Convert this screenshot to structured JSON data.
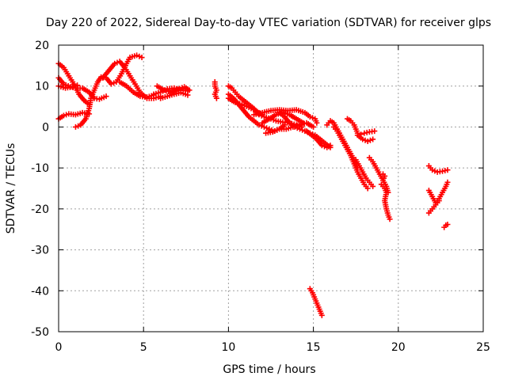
{
  "chart_data": {
    "type": "scatter",
    "title": "Day 220 of 2022, Sidereal Day-to-day VTEC variation (SDTVAR) for receiver glps",
    "xlabel": "GPS time / hours",
    "ylabel": "SDTVAR / TECUs",
    "xlim": [
      0,
      25
    ],
    "ylim": [
      -50,
      20
    ],
    "xticks": [
      0,
      5,
      10,
      15,
      20,
      25
    ],
    "yticks": [
      -50,
      -40,
      -30,
      -20,
      -10,
      0,
      10,
      20
    ],
    "grid": true,
    "marker": "+",
    "color": "#ff0000",
    "segments": [
      {
        "name": "arc-1",
        "points": [
          [
            0.0,
            15.5
          ],
          [
            0.3,
            14.5
          ],
          [
            0.6,
            12.5
          ],
          [
            0.9,
            10.5
          ],
          [
            1.2,
            8.0
          ],
          [
            1.5,
            6.5
          ],
          [
            1.8,
            5.5
          ]
        ]
      },
      {
        "name": "arc-2",
        "points": [
          [
            0.0,
            12.0
          ],
          [
            0.3,
            10.5
          ],
          [
            0.7,
            9.8
          ],
          [
            1.0,
            9.5
          ],
          [
            1.4,
            9.5
          ],
          [
            1.8,
            8.5
          ],
          [
            2.1,
            7.0
          ],
          [
            2.4,
            6.8
          ],
          [
            2.8,
            7.5
          ]
        ]
      },
      {
        "name": "arc-3",
        "points": [
          [
            0.0,
            10.0
          ],
          [
            0.4,
            9.5
          ],
          [
            0.8,
            9.8
          ],
          [
            1.1,
            10.2
          ]
        ]
      },
      {
        "name": "arc-4",
        "points": [
          [
            0.0,
            2.0
          ],
          [
            0.3,
            2.8
          ],
          [
            0.6,
            3.2
          ],
          [
            1.0,
            3.0
          ],
          [
            1.4,
            3.5
          ],
          [
            1.8,
            3.2
          ]
        ]
      },
      {
        "name": "arc-5",
        "points": [
          [
            1.0,
            0.0
          ],
          [
            1.3,
            0.5
          ],
          [
            1.6,
            2.0
          ],
          [
            1.8,
            4.5
          ],
          [
            1.9,
            7.0
          ],
          [
            2.1,
            9.0
          ],
          [
            2.3,
            11.0
          ],
          [
            2.5,
            12.2
          ],
          [
            2.8,
            12.0
          ],
          [
            3.1,
            10.5
          ],
          [
            3.4,
            11.0
          ],
          [
            3.7,
            13.0
          ],
          [
            4.0,
            15.5
          ],
          [
            4.2,
            17.0
          ],
          [
            4.6,
            17.5
          ],
          [
            4.9,
            17.0
          ]
        ]
      },
      {
        "name": "arc-6",
        "points": [
          [
            2.6,
            12.0
          ],
          [
            3.0,
            14.0
          ],
          [
            3.3,
            15.5
          ],
          [
            3.6,
            16.0
          ],
          [
            3.9,
            14.5
          ],
          [
            4.2,
            12.5
          ],
          [
            4.5,
            10.5
          ],
          [
            4.8,
            8.5
          ],
          [
            5.2,
            7.0
          ],
          [
            5.6,
            7.0
          ],
          [
            6.0,
            7.5
          ]
        ]
      },
      {
        "name": "arc-7",
        "points": [
          [
            3.6,
            11.0
          ],
          [
            4.0,
            10.0
          ],
          [
            4.4,
            8.5
          ],
          [
            4.8,
            7.5
          ],
          [
            5.2,
            7.3
          ],
          [
            5.6,
            7.8
          ]
        ]
      },
      {
        "name": "arc-8",
        "points": [
          [
            5.6,
            8.0
          ],
          [
            6.0,
            8.5
          ],
          [
            6.4,
            9.3
          ],
          [
            6.8,
            9.5
          ],
          [
            7.2,
            9.0
          ],
          [
            7.6,
            8.8
          ]
        ]
      },
      {
        "name": "arc-9",
        "points": [
          [
            5.8,
            10.0
          ],
          [
            6.2,
            9.0
          ],
          [
            6.6,
            8.5
          ],
          [
            7.0,
            9.2
          ],
          [
            7.4,
            9.8
          ],
          [
            7.7,
            9.0
          ]
        ]
      },
      {
        "name": "arc-10",
        "points": [
          [
            6.0,
            7.0
          ],
          [
            6.4,
            7.5
          ],
          [
            6.8,
            8.0
          ],
          [
            7.2,
            8.4
          ],
          [
            7.6,
            7.8
          ]
        ]
      },
      {
        "name": "arc-11",
        "points": [
          [
            9.2,
            11.0
          ],
          [
            9.2,
            10.0
          ],
          [
            9.3,
            9.0
          ],
          [
            9.2,
            8.0
          ],
          [
            9.3,
            7.0
          ]
        ]
      },
      {
        "name": "arc-12",
        "points": [
          [
            10.0,
            10.0
          ],
          [
            10.2,
            9.5
          ],
          [
            10.4,
            8.5
          ],
          [
            10.6,
            7.5
          ],
          [
            10.9,
            6.5
          ],
          [
            11.2,
            5.5
          ],
          [
            11.5,
            4.5
          ],
          [
            11.8,
            3.0
          ],
          [
            12.1,
            2.5
          ],
          [
            12.5,
            2.0
          ],
          [
            12.8,
            1.5
          ],
          [
            13.2,
            1.2
          ],
          [
            13.6,
            1.0
          ],
          [
            14.0,
            0.5
          ],
          [
            14.3,
            0.0
          ]
        ]
      },
      {
        "name": "arc-13",
        "points": [
          [
            10.0,
            8.0
          ],
          [
            10.3,
            7.0
          ],
          [
            10.6,
            5.5
          ],
          [
            10.9,
            4.0
          ],
          [
            11.2,
            2.5
          ],
          [
            11.5,
            1.5
          ],
          [
            11.8,
            0.5
          ],
          [
            12.1,
            0.0
          ],
          [
            12.4,
            -0.5
          ],
          [
            12.7,
            -1.0
          ],
          [
            13.0,
            -0.5
          ],
          [
            13.3,
            0.5
          ]
        ]
      },
      {
        "name": "arc-14",
        "points": [
          [
            10.0,
            7.0
          ],
          [
            10.4,
            6.0
          ],
          [
            10.8,
            5.5
          ],
          [
            11.2,
            4.8
          ],
          [
            11.6,
            4.0
          ],
          [
            12.0,
            3.0
          ]
        ]
      },
      {
        "name": "arc-15",
        "points": [
          [
            11.5,
            3.0
          ],
          [
            12.0,
            3.5
          ],
          [
            12.5,
            4.0
          ],
          [
            13.0,
            4.2
          ],
          [
            13.5,
            4.0
          ],
          [
            14.0,
            4.2
          ],
          [
            14.5,
            3.5
          ],
          [
            14.8,
            2.5
          ],
          [
            15.1,
            2.0
          ],
          [
            15.2,
            1.0
          ]
        ]
      },
      {
        "name": "arc-16",
        "points": [
          [
            12.0,
            1.0
          ],
          [
            12.4,
            2.0
          ],
          [
            12.8,
            3.0
          ],
          [
            13.2,
            3.5
          ],
          [
            13.6,
            3.0
          ],
          [
            14.0,
            2.0
          ],
          [
            14.4,
            1.0
          ]
        ]
      },
      {
        "name": "arc-17",
        "points": [
          [
            12.2,
            -1.5
          ],
          [
            12.6,
            -1.2
          ],
          [
            13.0,
            -0.5
          ],
          [
            13.4,
            -0.5
          ],
          [
            13.8,
            0.0
          ],
          [
            14.2,
            0.5
          ],
          [
            14.6,
            1.0
          ],
          [
            15.0,
            0.0
          ]
        ]
      },
      {
        "name": "arc-18",
        "points": [
          [
            13.0,
            3.5
          ],
          [
            13.3,
            2.5
          ],
          [
            13.6,
            1.0
          ],
          [
            13.9,
            0.0
          ],
          [
            14.2,
            -0.5
          ],
          [
            14.5,
            -1.0
          ],
          [
            14.8,
            -1.5
          ],
          [
            15.1,
            -2.0
          ],
          [
            15.4,
            -3.0
          ],
          [
            15.7,
            -4.0
          ],
          [
            16.0,
            -5.0
          ]
        ]
      },
      {
        "name": "arc-19",
        "points": [
          [
            14.6,
            -1.0
          ],
          [
            14.9,
            -2.0
          ],
          [
            15.2,
            -3.0
          ],
          [
            15.5,
            -4.5
          ],
          [
            15.8,
            -5.0
          ],
          [
            16.0,
            -4.5
          ]
        ]
      },
      {
        "name": "arc-20",
        "points": [
          [
            14.8,
            -39.5
          ],
          [
            14.95,
            -40.5
          ],
          [
            15.1,
            -42.0
          ],
          [
            15.25,
            -43.5
          ],
          [
            15.4,
            -45.0
          ],
          [
            15.5,
            -46.0
          ]
        ]
      },
      {
        "name": "arc-21",
        "points": [
          [
            15.8,
            0.5
          ],
          [
            16.0,
            1.5
          ],
          [
            16.2,
            1.0
          ],
          [
            16.4,
            -0.5
          ],
          [
            16.6,
            -2.0
          ],
          [
            16.8,
            -3.5
          ],
          [
            17.0,
            -5.0
          ],
          [
            17.2,
            -6.5
          ],
          [
            17.4,
            -8.0
          ],
          [
            17.6,
            -10.0
          ]
        ]
      },
      {
        "name": "arc-22",
        "points": [
          [
            16.2,
            0.0
          ],
          [
            16.4,
            -1.0
          ],
          [
            16.6,
            -2.5
          ],
          [
            16.8,
            -4.0
          ],
          [
            17.0,
            -5.5
          ],
          [
            17.2,
            -7.0
          ],
          [
            17.4,
            -9.0
          ],
          [
            17.6,
            -11.0
          ],
          [
            17.8,
            -12.5
          ],
          [
            18.0,
            -14.0
          ],
          [
            18.2,
            -15.0
          ]
        ]
      },
      {
        "name": "arc-23",
        "points": [
          [
            17.0,
            2.0
          ],
          [
            17.2,
            1.5
          ],
          [
            17.4,
            0.5
          ],
          [
            17.5,
            -0.5
          ],
          [
            17.6,
            -1.5
          ],
          [
            17.8,
            -1.8
          ],
          [
            18.0,
            -1.5
          ],
          [
            18.3,
            -1.2
          ],
          [
            18.6,
            -1.0
          ]
        ]
      },
      {
        "name": "arc-24",
        "points": [
          [
            17.5,
            -8.0
          ],
          [
            17.7,
            -9.5
          ],
          [
            17.9,
            -11.0
          ],
          [
            18.1,
            -12.5
          ],
          [
            18.3,
            -13.5
          ],
          [
            18.5,
            -14.5
          ]
        ]
      },
      {
        "name": "arc-25",
        "points": [
          [
            17.6,
            -2.0
          ],
          [
            17.9,
            -3.0
          ],
          [
            18.2,
            -3.5
          ],
          [
            18.5,
            -3.0
          ]
        ]
      },
      {
        "name": "arc-26",
        "points": [
          [
            18.3,
            -7.5
          ],
          [
            18.5,
            -8.5
          ],
          [
            18.7,
            -10.0
          ],
          [
            18.9,
            -11.5
          ],
          [
            19.1,
            -13.0
          ],
          [
            19.3,
            -14.5
          ],
          [
            19.4,
            -16.0
          ]
        ]
      },
      {
        "name": "arc-27",
        "points": [
          [
            19.0,
            -14.0
          ],
          [
            19.2,
            -15.0
          ],
          [
            19.3,
            -16.0
          ],
          [
            19.2,
            -18.0
          ],
          [
            19.3,
            -20.0
          ],
          [
            19.4,
            -21.5
          ],
          [
            19.5,
            -22.5
          ]
        ]
      },
      {
        "name": "arc-28",
        "points": [
          [
            19.1,
            -11.5
          ],
          [
            19.2,
            -12.0
          ],
          [
            19.1,
            -13.0
          ]
        ]
      },
      {
        "name": "arc-29",
        "points": [
          [
            21.8,
            -9.5
          ],
          [
            22.0,
            -10.5
          ],
          [
            22.3,
            -11.0
          ],
          [
            22.6,
            -10.8
          ],
          [
            22.9,
            -10.5
          ]
        ]
      },
      {
        "name": "arc-30",
        "points": [
          [
            21.8,
            -15.5
          ],
          [
            22.0,
            -17.0
          ],
          [
            22.2,
            -18.5
          ],
          [
            22.4,
            -17.5
          ],
          [
            22.6,
            -16.0
          ],
          [
            22.8,
            -14.5
          ],
          [
            22.9,
            -13.5
          ]
        ]
      },
      {
        "name": "arc-31",
        "points": [
          [
            21.8,
            -21.0
          ],
          [
            22.0,
            -20.0
          ],
          [
            22.2,
            -19.0
          ],
          [
            22.4,
            -18.0
          ]
        ]
      },
      {
        "name": "arc-32",
        "points": [
          [
            22.7,
            -24.5
          ],
          [
            22.8,
            -24.0
          ],
          [
            22.9,
            -23.8
          ]
        ]
      }
    ]
  }
}
